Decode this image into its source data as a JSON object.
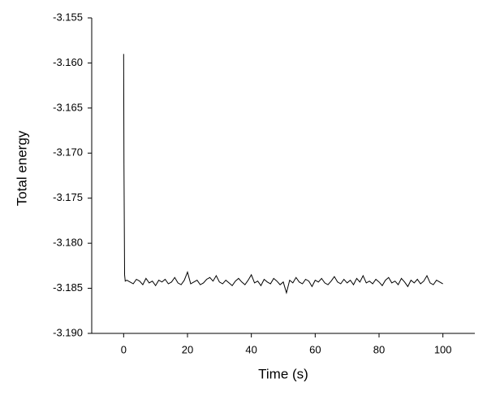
{
  "chart_data": {
    "type": "line",
    "xlabel": "Time (s)",
    "ylabel": "Total energy",
    "color": "#000000",
    "x": [
      0,
      0.1,
      0.3,
      0.5,
      1,
      2,
      3,
      4,
      5,
      6,
      7,
      8,
      9,
      10,
      11,
      12,
      13,
      14,
      15,
      16,
      17,
      18,
      19,
      20,
      21,
      22,
      23,
      24,
      25,
      26,
      27,
      28,
      29,
      30,
      31,
      32,
      33,
      34,
      35,
      36,
      37,
      38,
      39,
      40,
      41,
      42,
      43,
      44,
      45,
      46,
      47,
      48,
      49,
      50,
      51,
      52,
      53,
      54,
      55,
      56,
      57,
      58,
      59,
      60,
      61,
      62,
      63,
      64,
      65,
      66,
      67,
      68,
      69,
      70,
      71,
      72,
      73,
      74,
      75,
      76,
      77,
      78,
      79,
      80,
      81,
      82,
      83,
      84,
      85,
      86,
      87,
      88,
      89,
      90,
      91,
      92,
      93,
      94,
      95,
      96,
      97,
      98,
      99,
      100
    ],
    "values": [
      -3.159,
      -3.1712,
      -3.1835,
      -3.1842,
      -3.1841,
      -3.1843,
      -3.1845,
      -3.184,
      -3.1842,
      -3.1846,
      -3.1839,
      -3.1844,
      -3.1842,
      -3.1847,
      -3.1841,
      -3.1843,
      -3.184,
      -3.1845,
      -3.1843,
      -3.1838,
      -3.1844,
      -3.1846,
      -3.1841,
      -3.1832,
      -3.1845,
      -3.1843,
      -3.1841,
      -3.1846,
      -3.1844,
      -3.184,
      -3.1838,
      -3.1842,
      -3.1836,
      -3.1843,
      -3.1845,
      -3.1841,
      -3.1844,
      -3.1847,
      -3.1842,
      -3.1839,
      -3.1843,
      -3.1846,
      -3.1841,
      -3.1835,
      -3.1844,
      -3.1842,
      -3.1847,
      -3.184,
      -3.1843,
      -3.1845,
      -3.1839,
      -3.1842,
      -3.1846,
      -3.1843,
      -3.1855,
      -3.1841,
      -3.1844,
      -3.1838,
      -3.1843,
      -3.1845,
      -3.184,
      -3.1842,
      -3.1848,
      -3.1841,
      -3.1843,
      -3.1839,
      -3.1844,
      -3.1846,
      -3.1842,
      -3.1837,
      -3.1843,
      -3.1845,
      -3.184,
      -3.1844,
      -3.1841,
      -3.1846,
      -3.1839,
      -3.1843,
      -3.1836,
      -3.1844,
      -3.1842,
      -3.1845,
      -3.184,
      -3.1843,
      -3.1847,
      -3.1841,
      -3.1838,
      -3.1844,
      -3.1842,
      -3.1846,
      -3.1839,
      -3.1843,
      -3.1848,
      -3.1841,
      -3.1844,
      -3.184,
      -3.1845,
      -3.1842,
      -3.1836,
      -3.1844,
      -3.1846,
      -3.1841,
      -3.1843,
      -3.1845
    ],
    "xlim": [
      -10,
      110
    ],
    "xticks": [
      0,
      20,
      40,
      60,
      80,
      100
    ],
    "ylim": [
      -3.19,
      -3.155
    ],
    "yticks": [
      {
        "value": -3.19,
        "label": "-3.190"
      },
      -3.185,
      {
        "value": -3.18,
        "label": "-3.180"
      },
      -3.175,
      {
        "value": -3.17,
        "label": "-3.170"
      },
      -3.165,
      {
        "value": -3.16,
        "label": "-3.160"
      },
      -3.155
    ]
  }
}
